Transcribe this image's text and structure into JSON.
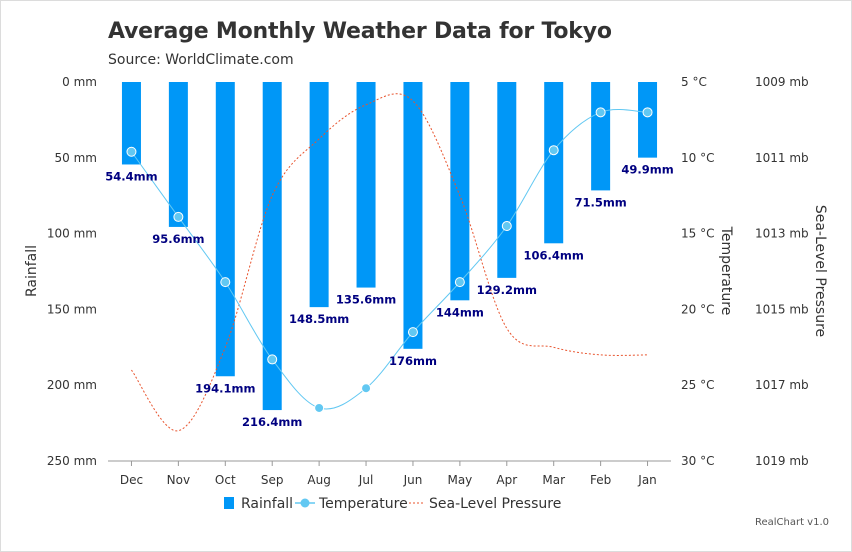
{
  "title": "Average Monthly Weather Data for Tokyo",
  "subtitle": "Source: WorldClimate.com",
  "credit": "RealChart v1.0",
  "colors": {
    "rainfall": "#0097f7",
    "temperature": "#62c8f2",
    "pressure": "#e8542e",
    "data_label": "#000080",
    "axis_text": "#333333",
    "grid": "#e6e6e6"
  },
  "chart_data": {
    "type": "bar",
    "categories": [
      "Dec",
      "Nov",
      "Oct",
      "Sep",
      "Aug",
      "Jul",
      "Jun",
      "May",
      "Apr",
      "Mar",
      "Feb",
      "Jan"
    ],
    "series": [
      {
        "name": "Rainfall",
        "type": "bar",
        "axis": "Rainfall",
        "unit": "mm",
        "values": [
          54.4,
          95.6,
          194.1,
          216.4,
          148.5,
          135.6,
          176,
          144,
          129.2,
          106.4,
          71.5,
          49.9
        ],
        "labels": [
          "54.4mm",
          "95.6mm",
          "194.1mm",
          "216.4mm",
          "148.5mm",
          "135.6mm",
          "176mm",
          "144mm",
          "129.2mm",
          "106.4mm",
          "71.5mm",
          "49.9mm"
        ]
      },
      {
        "name": "Temperature",
        "type": "spline",
        "axis": "Temperature",
        "unit": "°C",
        "values": [
          9.6,
          13.9,
          18.2,
          23.3,
          26.5,
          25.2,
          21.5,
          18.2,
          14.5,
          9.5,
          7.0,
          7.0
        ]
      },
      {
        "name": "Sea-Level Pressure",
        "type": "spline",
        "axis": "Sea-Level Pressure",
        "unit": "mb",
        "line_style": "dashed",
        "values": [
          1016.6,
          1018.2,
          1016.0,
          1012.0,
          1010.5,
          1009.6,
          1009.5,
          1012.0,
          1015.5,
          1016.0,
          1016.2,
          1016.2
        ]
      }
    ],
    "axes": {
      "rainfall": {
        "title": "Rainfall",
        "position": "left",
        "reversed": true,
        "min": 0,
        "max": 250,
        "ticks": [
          "0 mm",
          "50 mm",
          "100 mm",
          "150 mm",
          "200 mm",
          "250 mm"
        ]
      },
      "temperature": {
        "title": "Temperature",
        "position": "right",
        "reversed": true,
        "min": 5,
        "max": 30,
        "ticks": [
          "5 °C",
          "10 °C",
          "15 °C",
          "20 °C",
          "25 °C",
          "30 °C"
        ]
      },
      "pressure": {
        "title": "Sea-Level Pressure",
        "position": "right",
        "reversed": true,
        "min": 1009,
        "max": 1019,
        "ticks": [
          "1009 mb",
          "1011 mb",
          "1013 mb",
          "1015 mb",
          "1017 mb",
          "1019 mb"
        ]
      }
    },
    "grid": false,
    "legend": {
      "position": "bottom",
      "items": [
        "Rainfall",
        "Temperature",
        "Sea-Level Pressure"
      ]
    }
  }
}
